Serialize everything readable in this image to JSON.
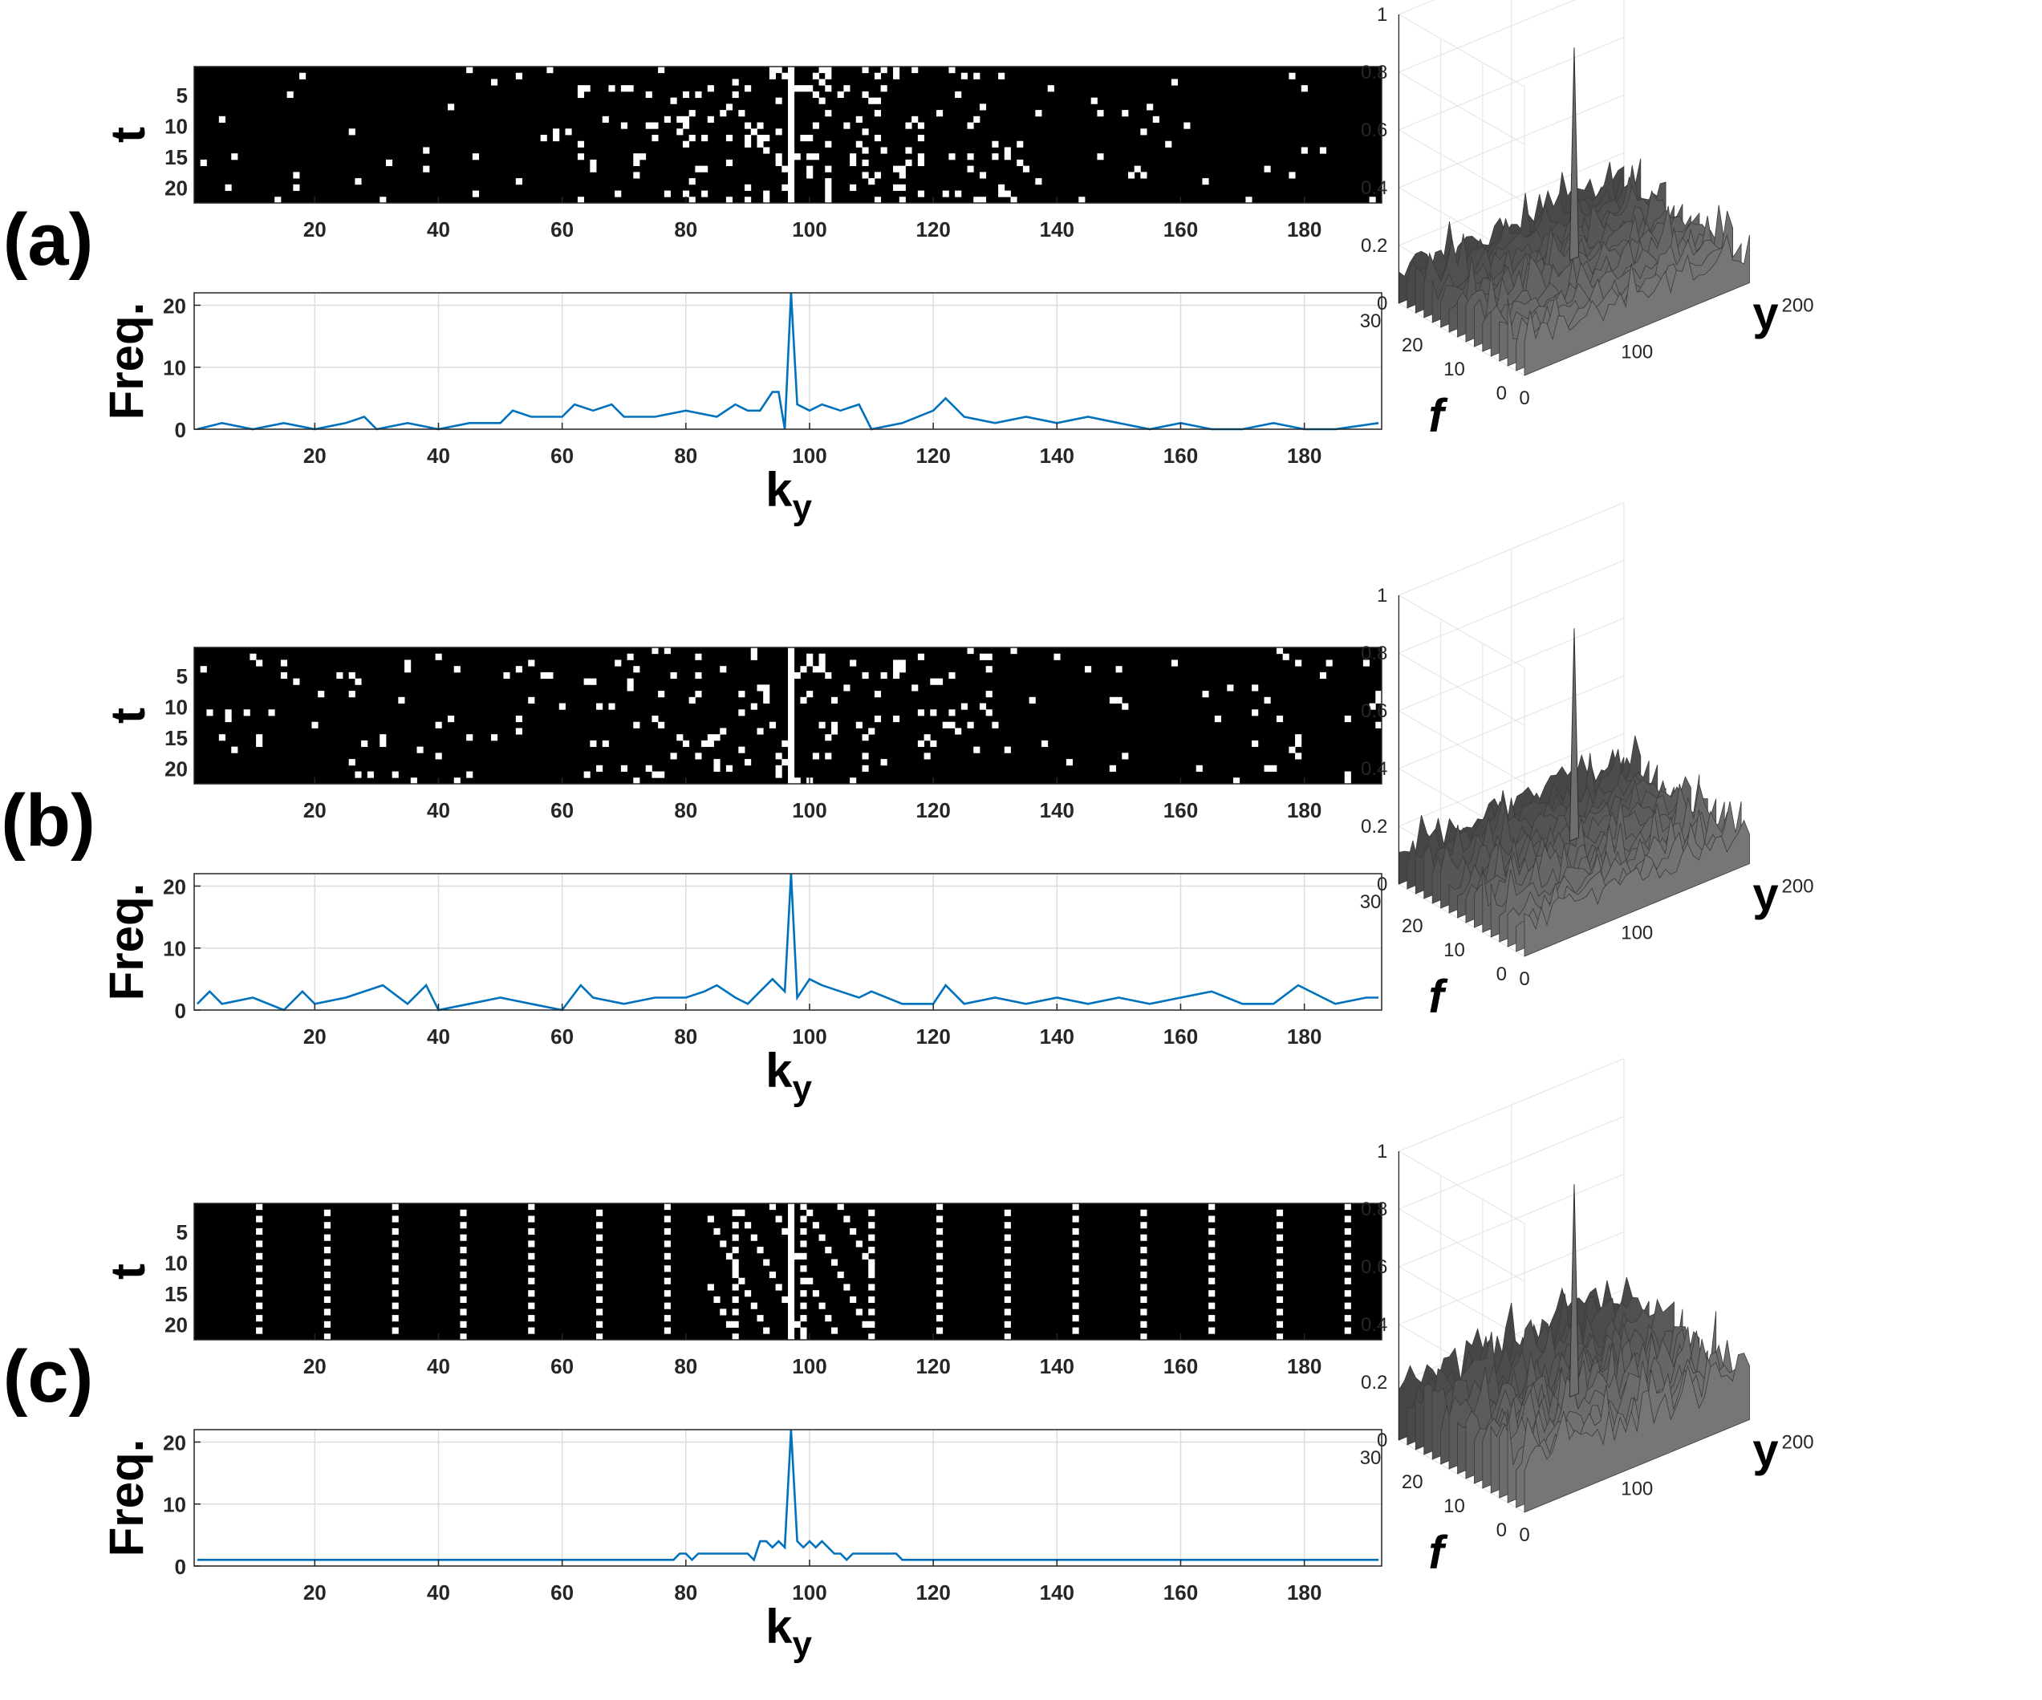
{
  "panels": [
    {
      "label": "(a)",
      "peak_height": 0.85
    },
    {
      "label": "(b)",
      "peak_height": 0.85
    },
    {
      "label": "(c)",
      "peak_height": 0.85
    }
  ],
  "axes": {
    "mask_ylabel": "t",
    "freq_ylabel": "Freq.",
    "xlabel_main": "k",
    "xlabel_sub": "y",
    "x_ticks": [
      "20",
      "40",
      "60",
      "80",
      "100",
      "120",
      "140",
      "160",
      "180"
    ],
    "t_ticks": [
      "5",
      "10",
      "15",
      "20"
    ],
    "freq_ticks": [
      "0",
      "10",
      "20"
    ],
    "surface_z_ticks": [
      "0",
      "0.2",
      "0.4",
      "0.6",
      "0.8",
      "1"
    ],
    "surface_f_ticks": [
      "0",
      "10",
      "20",
      "30"
    ],
    "surface_y_ticks": [
      "0",
      "100",
      "200"
    ],
    "surface_f_label": "f",
    "surface_y_label": "y"
  },
  "colors": {
    "line": "#0072BD",
    "mask_bg": "#000000",
    "mask_fg": "#ffffff",
    "surface": "#555555"
  },
  "chart_data": [
    {
      "type": "heatmap",
      "name": "",
      "x_range": [
        1,
        192
      ],
      "y_range": [
        1,
        22
      ],
      "title": "",
      "xlabel": "",
      "ylabel": "t",
      "values": "binary undersampling mask, 22 frames x 192 phase encodes; centre line k_y = 97 fully sampled; samples concentrated around centre (variable density)"
    },
    {
      "type": "line",
      "name": "",
      "xlabel": "k_y",
      "ylabel": "Freq.",
      "xlim": [
        1,
        192
      ],
      "ylim": [
        0,
        22
      ],
      "x": [
        1,
        5,
        10,
        15,
        20,
        25,
        28,
        30,
        35,
        40,
        45,
        50,
        52,
        55,
        60,
        62,
        65,
        68,
        70,
        75,
        80,
        85,
        88,
        90,
        92,
        94,
        95,
        96,
        97,
        98,
        100,
        102,
        105,
        108,
        110,
        115,
        120,
        122,
        125,
        130,
        135,
        140,
        145,
        150,
        155,
        160,
        165,
        170,
        175,
        180,
        185,
        192
      ],
      "y": [
        0,
        1,
        0,
        1,
        0,
        1,
        2,
        0,
        1,
        0,
        1,
        1,
        3,
        2,
        2,
        4,
        3,
        4,
        2,
        2,
        3,
        2,
        4,
        3,
        3,
        6,
        6,
        0,
        22,
        4,
        3,
        4,
        3,
        4,
        0,
        1,
        3,
        5,
        2,
        1,
        2,
        1,
        2,
        1,
        0,
        1,
        0,
        0,
        1,
        0,
        0,
        1
      ]
    },
    {
      "type": "surface",
      "name": "",
      "xlabel": "y",
      "ylabel": "f",
      "zlim": [
        0,
        1
      ],
      "xlim": [
        0,
        200
      ],
      "ylim": [
        0,
        30
      ],
      "values": "single sharp peak of height about 0.85 near y = 100, f = 15; noisy floor below 0.2"
    },
    {
      "type": "heatmap",
      "name": "",
      "x_range": [
        1,
        192
      ],
      "y_range": [
        1,
        22
      ],
      "title": "",
      "xlabel": "",
      "ylabel": "t",
      "values": "binary undersampling mask, samples spread across the whole k_y range with fully sampled centre line k_y = 97"
    },
    {
      "type": "line",
      "name": "",
      "xlabel": "k_y",
      "ylabel": "Freq.",
      "xlim": [
        1,
        192
      ],
      "ylim": [
        0,
        22
      ],
      "x": [
        1,
        3,
        5,
        10,
        15,
        18,
        20,
        25,
        31,
        35,
        38,
        40,
        45,
        50,
        55,
        60,
        63,
        65,
        70,
        75,
        80,
        83,
        85,
        88,
        90,
        92,
        94,
        95,
        96,
        97,
        98,
        100,
        102,
        105,
        108,
        110,
        115,
        120,
        122,
        125,
        130,
        135,
        140,
        145,
        150,
        155,
        160,
        165,
        170,
        175,
        179,
        185,
        190,
        192
      ],
      "y": [
        1,
        3,
        1,
        2,
        0,
        3,
        1,
        2,
        4,
        1,
        4,
        0,
        1,
        2,
        1,
        0,
        4,
        2,
        1,
        2,
        2,
        3,
        4,
        2,
        1,
        3,
        5,
        4,
        3,
        22,
        2,
        5,
        4,
        3,
        2,
        3,
        1,
        1,
        4,
        1,
        2,
        1,
        2,
        1,
        2,
        1,
        2,
        3,
        1,
        1,
        4,
        1,
        2,
        2
      ]
    },
    {
      "type": "surface",
      "name": "",
      "xlabel": "y",
      "ylabel": "f",
      "zlim": [
        0,
        1
      ],
      "xlim": [
        0,
        200
      ],
      "ylim": [
        0,
        30
      ],
      "values": "single sharp peak of height about 0.85 near y = 100, f = 15; noisy floor below 0.2"
    },
    {
      "type": "heatmap",
      "name": "",
      "x_range": [
        1,
        192
      ],
      "y_range": [
        1,
        22
      ],
      "title": "",
      "xlabel": "",
      "ylabel": "t",
      "values": "binary undersampling mask, about one sample per k_y line arranged in a regular lattice, fully sampled centre line k_y = 97"
    },
    {
      "type": "line",
      "name": "",
      "xlabel": "k_y",
      "ylabel": "Freq.",
      "xlim": [
        1,
        192
      ],
      "ylim": [
        0,
        22
      ],
      "x": [
        1,
        10,
        20,
        40,
        60,
        78,
        79,
        80,
        81,
        82,
        84,
        86,
        88,
        90,
        91,
        92,
        93,
        94,
        95,
        96,
        97,
        98,
        99,
        100,
        101,
        102,
        103,
        104,
        105,
        106,
        107,
        110,
        114,
        115,
        120,
        140,
        160,
        180,
        192
      ],
      "y": [
        1,
        1,
        1,
        1,
        1,
        1,
        2,
        2,
        1,
        2,
        2,
        2,
        2,
        2,
        1,
        4,
        4,
        3,
        4,
        3,
        22,
        4,
        3,
        4,
        3,
        4,
        3,
        2,
        2,
        1,
        2,
        2,
        2,
        1,
        1,
        1,
        1,
        1,
        1
      ]
    },
    {
      "type": "surface",
      "name": "",
      "xlabel": "y",
      "ylabel": "f",
      "zlim": [
        0,
        1
      ],
      "xlim": [
        0,
        200
      ],
      "ylim": [
        0,
        30
      ],
      "values": "single sharp peak of height about 0.85 near y = 100, f = 15; noisy floor reaching about 0.3"
    }
  ]
}
